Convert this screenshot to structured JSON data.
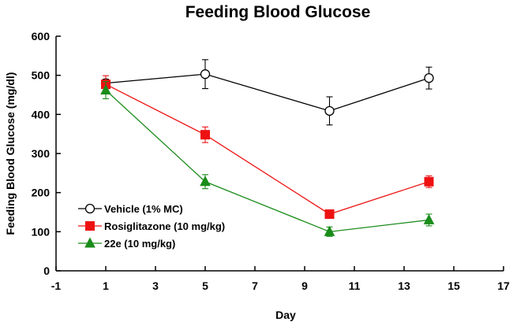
{
  "chart_data": {
    "type": "line",
    "title": "Feeding Blood Glucose",
    "xlabel": "Day",
    "ylabel": "Feeding Blood Glucose (mg/dl)",
    "xlim": [
      -1,
      17
    ],
    "ylim": [
      0,
      600
    ],
    "xticks": [
      -1,
      1,
      3,
      5,
      7,
      9,
      11,
      13,
      15,
      17
    ],
    "yticks": [
      0,
      100,
      200,
      300,
      400,
      500,
      600
    ],
    "grid": false,
    "legend_position": "bottom-left",
    "series": [
      {
        "name": "Vehicle (1% MC)",
        "color": "#000000",
        "marker": "circle-open",
        "x": [
          1,
          5,
          10,
          14
        ],
        "y": [
          480,
          503,
          409,
          493
        ],
        "err": [
          10,
          37,
          36,
          28
        ]
      },
      {
        "name": "Rosiglitazone (10 mg/kg)",
        "color": "#ee1111",
        "marker": "square",
        "x": [
          1,
          5,
          10,
          14
        ],
        "y": [
          477,
          348,
          145,
          228
        ],
        "err": [
          22,
          20,
          10,
          15
        ]
      },
      {
        "name": "22e (10 mg/kg)",
        "color": "#1a8c1a",
        "marker": "triangle",
        "x": [
          1,
          5,
          10,
          14
        ],
        "y": [
          462,
          228,
          100,
          130
        ],
        "err": [
          22,
          18,
          12,
          15
        ]
      }
    ]
  }
}
